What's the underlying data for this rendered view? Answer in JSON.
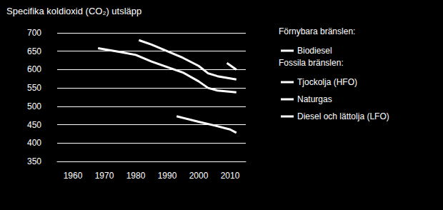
{
  "chart_data": {
    "type": "line",
    "title": "Specifika koldioxid (CO₂) utsläpp",
    "xlim": [
      1955,
      2015
    ],
    "xticks": [
      1960,
      1970,
      1980,
      1990,
      2000,
      2010
    ],
    "ylim": [
      350,
      700
    ],
    "yticks": [
      350,
      400,
      450,
      500,
      550,
      600,
      650,
      700
    ],
    "grid": true,
    "legend": "right",
    "legend_groups": [
      {
        "title": "Förnybara bränslen:",
        "series": [
          "Biodiesel"
        ]
      },
      {
        "title": "Fossila bränslen:",
        "series": [
          "Tjockolja (HFO)",
          "Naturgas",
          "Diesel och lättolja (LFO)"
        ]
      }
    ],
    "series": [
      {
        "name": "Biodiesel",
        "color": "#ffffff",
        "x": [
          2009,
          2012
        ],
        "values": [
          618,
          600
        ]
      },
      {
        "name": "Tjockolja (HFO)",
        "color": "#ffffff",
        "x": [
          1981,
          1985,
          1990,
          1995,
          2000,
          2003,
          2006,
          2012
        ],
        "values": [
          680,
          668,
          650,
          632,
          610,
          590,
          582,
          573
        ]
      },
      {
        "name": "Naturgas",
        "color": "#ffffff",
        "x": [
          1993,
          2000,
          2005,
          2010,
          2012
        ],
        "values": [
          473,
          458,
          448,
          437,
          428
        ]
      },
      {
        "name": "Diesel och lättolja (LFO)",
        "color": "#ffffff",
        "x": [
          1968,
          1975,
          1980,
          1985,
          1990,
          1995,
          2000,
          2003,
          2006,
          2012
        ],
        "values": [
          658,
          648,
          640,
          622,
          607,
          592,
          568,
          550,
          543,
          538
        ]
      }
    ]
  }
}
